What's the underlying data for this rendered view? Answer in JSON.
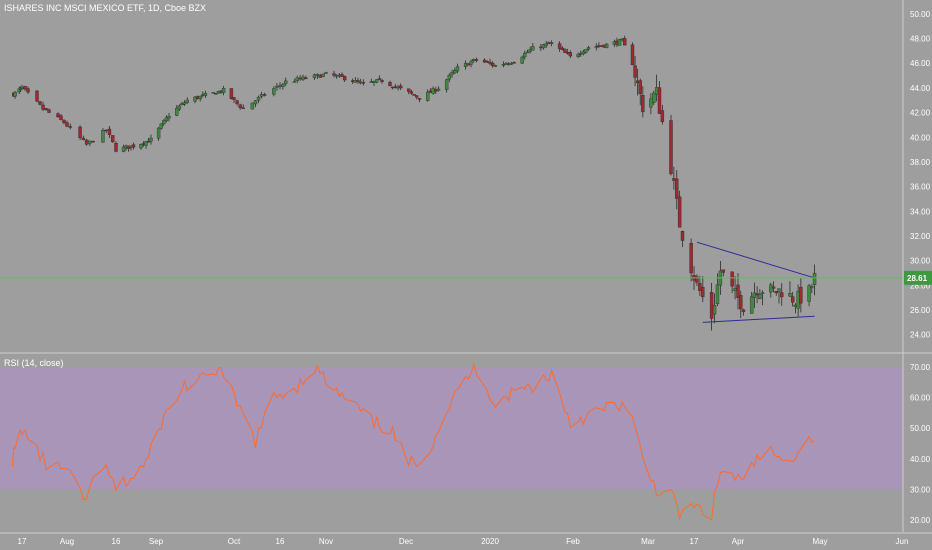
{
  "title": "ISHARES INC MSCI MEXICO ETF, 1D, Cboe BZX",
  "rsi_label": "RSI (14, close)",
  "last_price_label": "28.61",
  "colors": {
    "background": "#9e9e9e",
    "up": "#3d8b3d",
    "down": "#a02830",
    "rsi_line": "#ff6a2a",
    "rsi_band": "#a895b8",
    "trendline": "#2b2b9a",
    "price_line": "#5fbf5f",
    "price_label_bg": "#3e9a3e"
  },
  "chart_data": [
    {
      "type": "candlestick",
      "title": "ISHARES INC MSCI MEXICO ETF, 1D, Cboe BZX",
      "y_ticks": [
        "24.00",
        "26.00",
        "28.00",
        "30.00",
        "32.00",
        "34.00",
        "36.00",
        "38.00",
        "40.00",
        "42.00",
        "44.00",
        "46.00",
        "48.00",
        "50.00"
      ],
      "ylim": [
        22.6,
        50.8
      ],
      "x_ticks": [
        "17",
        "Aug",
        "16",
        "Sep",
        "Oct",
        "16",
        "Nov",
        "Dec",
        "2020",
        "Feb",
        "Mar",
        "17",
        "Apr",
        "May",
        "Jun"
      ],
      "last_price": 28.61,
      "trendlines": [
        {
          "name": "upper",
          "from": {
            "date": "2020-03-18",
            "price": 31.5
          },
          "to": {
            "date": "2020-04-29",
            "price": 28.6
          }
        },
        {
          "name": "lower",
          "from": {
            "date": "2020-03-20",
            "price": 25.0
          },
          "to": {
            "date": "2020-04-29",
            "price": 25.5
          }
        }
      ],
      "close_path": [
        {
          "date": "2019-07-11",
          "close": 43.5
        },
        {
          "date": "2019-07-17",
          "close": 44.0
        },
        {
          "date": "2019-07-24",
          "close": 42.3
        },
        {
          "date": "2019-07-31",
          "close": 41.2
        },
        {
          "date": "2019-08-07",
          "close": 39.4
        },
        {
          "date": "2019-08-13",
          "close": 40.6
        },
        {
          "date": "2019-08-16",
          "close": 39.0
        },
        {
          "date": "2019-08-23",
          "close": 39.3
        },
        {
          "date": "2019-08-30",
          "close": 39.8
        },
        {
          "date": "2019-09-06",
          "close": 41.8
        },
        {
          "date": "2019-09-13",
          "close": 43.0
        },
        {
          "date": "2019-09-20",
          "close": 43.4
        },
        {
          "date": "2019-09-27",
          "close": 43.8
        },
        {
          "date": "2019-10-04",
          "close": 42.3
        },
        {
          "date": "2019-10-11",
          "close": 43.5
        },
        {
          "date": "2019-10-18",
          "close": 44.5
        },
        {
          "date": "2019-10-25",
          "close": 44.8
        },
        {
          "date": "2019-11-01",
          "close": 45.1
        },
        {
          "date": "2019-11-08",
          "close": 44.8
        },
        {
          "date": "2019-11-15",
          "close": 44.3
        },
        {
          "date": "2019-11-22",
          "close": 44.6
        },
        {
          "date": "2019-11-29",
          "close": 43.9
        },
        {
          "date": "2019-12-06",
          "close": 43.2
        },
        {
          "date": "2019-12-13",
          "close": 44.0
        },
        {
          "date": "2019-12-20",
          "close": 45.6
        },
        {
          "date": "2019-12-27",
          "close": 46.3
        },
        {
          "date": "2020-01-03",
          "close": 45.8
        },
        {
          "date": "2020-01-10",
          "close": 46.2
        },
        {
          "date": "2020-01-17",
          "close": 47.2
        },
        {
          "date": "2020-01-24",
          "close": 47.6
        },
        {
          "date": "2020-01-31",
          "close": 46.5
        },
        {
          "date": "2020-02-07",
          "close": 47.3
        },
        {
          "date": "2020-02-14",
          "close": 47.5
        },
        {
          "date": "2020-02-20",
          "close": 47.8
        },
        {
          "date": "2020-02-24",
          "close": 46.0
        },
        {
          "date": "2020-02-28",
          "close": 42.5
        },
        {
          "date": "2020-03-04",
          "close": 43.6
        },
        {
          "date": "2020-03-09",
          "close": 37.6
        },
        {
          "date": "2020-03-12",
          "close": 33.0
        },
        {
          "date": "2020-03-16",
          "close": 29.5
        },
        {
          "date": "2020-03-18",
          "close": 28.0
        },
        {
          "date": "2020-03-23",
          "close": 25.5
        },
        {
          "date": "2020-03-26",
          "close": 29.2
        },
        {
          "date": "2020-03-31",
          "close": 27.2
        },
        {
          "date": "2020-04-03",
          "close": 26.4
        },
        {
          "date": "2020-04-08",
          "close": 27.8
        },
        {
          "date": "2020-04-14",
          "close": 27.5
        },
        {
          "date": "2020-04-17",
          "close": 27.6
        },
        {
          "date": "2020-04-22",
          "close": 26.8
        },
        {
          "date": "2020-04-27",
          "close": 27.4
        },
        {
          "date": "2020-04-29",
          "close": 28.61
        }
      ]
    },
    {
      "type": "line",
      "title": "RSI (14, close)",
      "y_ticks": [
        "20.00",
        "30.00",
        "40.00",
        "50.00",
        "60.00",
        "70.00"
      ],
      "ylim": [
        16,
        74
      ],
      "band": [
        30,
        70
      ],
      "series": [
        {
          "values": [
            {
              "date": "2019-07-10",
              "rsi": 40
            },
            {
              "date": "2019-07-17",
              "rsi": 50
            },
            {
              "date": "2019-07-25",
              "rsi": 38
            },
            {
              "date": "2019-08-01",
              "rsi": 36
            },
            {
              "date": "2019-08-06",
              "rsi": 26
            },
            {
              "date": "2019-08-12",
              "rsi": 38
            },
            {
              "date": "2019-08-16",
              "rsi": 30
            },
            {
              "date": "2019-08-23",
              "rsi": 34
            },
            {
              "date": "2019-08-29",
              "rsi": 40
            },
            {
              "date": "2019-09-03",
              "rsi": 52
            },
            {
              "date": "2019-09-12",
              "rsi": 64
            },
            {
              "date": "2019-09-20",
              "rsi": 66
            },
            {
              "date": "2019-09-25",
              "rsi": 70
            },
            {
              "date": "2019-10-02",
              "rsi": 58
            },
            {
              "date": "2019-10-08",
              "rsi": 46
            },
            {
              "date": "2019-10-14",
              "rsi": 60
            },
            {
              "date": "2019-10-22",
              "rsi": 64
            },
            {
              "date": "2019-10-28",
              "rsi": 70
            },
            {
              "date": "2019-11-04",
              "rsi": 62
            },
            {
              "date": "2019-11-11",
              "rsi": 58
            },
            {
              "date": "2019-11-18",
              "rsi": 52
            },
            {
              "date": "2019-11-25",
              "rsi": 50
            },
            {
              "date": "2019-12-02",
              "rsi": 38
            },
            {
              "date": "2019-12-09",
              "rsi": 42
            },
            {
              "date": "2019-12-16",
              "rsi": 56
            },
            {
              "date": "2019-12-23",
              "rsi": 66
            },
            {
              "date": "2019-12-27",
              "rsi": 70
            },
            {
              "date": "2020-01-03",
              "rsi": 58
            },
            {
              "date": "2020-01-10",
              "rsi": 62
            },
            {
              "date": "2020-01-17",
              "rsi": 64
            },
            {
              "date": "2020-01-24",
              "rsi": 68
            },
            {
              "date": "2020-01-31",
              "rsi": 52
            },
            {
              "date": "2020-02-06",
              "rsi": 54
            },
            {
              "date": "2020-02-13",
              "rsi": 56
            },
            {
              "date": "2020-02-20",
              "rsi": 58
            },
            {
              "date": "2020-02-24",
              "rsi": 52
            },
            {
              "date": "2020-02-28",
              "rsi": 40
            },
            {
              "date": "2020-03-04",
              "rsi": 30
            },
            {
              "date": "2020-03-09",
              "rsi": 28
            },
            {
              "date": "2020-03-12",
              "rsi": 22
            },
            {
              "date": "2020-03-17",
              "rsi": 24
            },
            {
              "date": "2020-03-23",
              "rsi": 22
            },
            {
              "date": "2020-03-26",
              "rsi": 36
            },
            {
              "date": "2020-03-31",
              "rsi": 34
            },
            {
              "date": "2020-04-03",
              "rsi": 32
            },
            {
              "date": "2020-04-08",
              "rsi": 40
            },
            {
              "date": "2020-04-14",
              "rsi": 42
            },
            {
              "date": "2020-04-17",
              "rsi": 38
            },
            {
              "date": "2020-04-22",
              "rsi": 42
            },
            {
              "date": "2020-04-29",
              "rsi": 48
            }
          ]
        }
      ]
    }
  ]
}
